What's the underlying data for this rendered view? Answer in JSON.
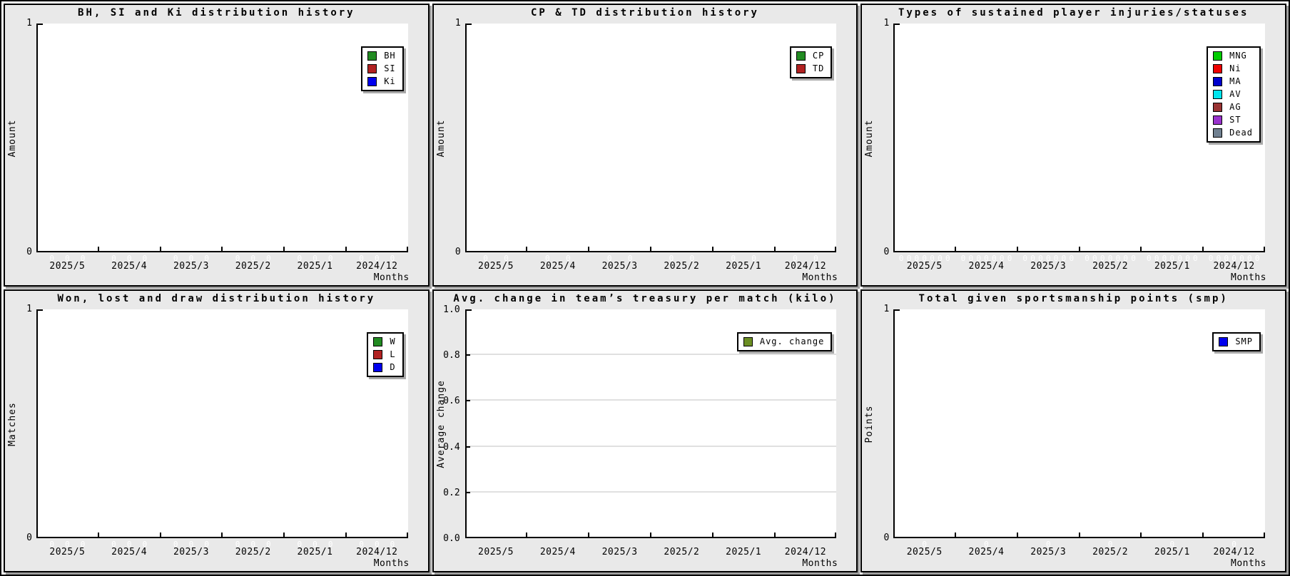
{
  "months_axis_label": "Months",
  "months": [
    "2025/5",
    "2025/4",
    "2025/3",
    "2025/2",
    "2025/1",
    "2024/12"
  ],
  "zero_label": "0",
  "panels": [
    {
      "id": "bh-si-ki",
      "title": "BH, SI and Ki distribution history",
      "ylabel": "Amount",
      "ymax": "1",
      "ymin": "0",
      "legend": [
        {
          "label": "BH",
          "color": "#228B22"
        },
        {
          "label": "SI",
          "color": "#B22222"
        },
        {
          "label": "Ki",
          "color": "#0000EE"
        }
      ],
      "show_zero_labels": true,
      "grid": false
    },
    {
      "id": "cp-td",
      "title": "CP & TD distribution history",
      "ylabel": "Amount",
      "ymax": "1",
      "ymin": "0",
      "legend": [
        {
          "label": "CP",
          "color": "#228B22"
        },
        {
          "label": "TD",
          "color": "#B22222"
        }
      ],
      "show_zero_labels": true,
      "grid": false
    },
    {
      "id": "injuries",
      "title": "Types of sustained player injuries/statuses",
      "ylabel": "Amount",
      "ymax": "1",
      "ymin": "0",
      "legend": [
        {
          "label": "MNG",
          "color": "#00CC00"
        },
        {
          "label": "Ni",
          "color": "#EE0000"
        },
        {
          "label": "MA",
          "color": "#0000CD"
        },
        {
          "label": "AV",
          "color": "#00E5EE"
        },
        {
          "label": "AG",
          "color": "#993333"
        },
        {
          "label": "ST",
          "color": "#9932CC"
        },
        {
          "label": "Dead",
          "color": "#708090"
        }
      ],
      "show_zero_labels": true,
      "grid": false
    },
    {
      "id": "won-lost-draw",
      "title": "Won, lost and draw distribution history",
      "ylabel": "Matches",
      "ymax": "1",
      "ymin": "0",
      "legend": [
        {
          "label": "W",
          "color": "#228B22"
        },
        {
          "label": "L",
          "color": "#B22222"
        },
        {
          "label": "D",
          "color": "#0000EE"
        }
      ],
      "show_zero_labels": true,
      "grid": false
    },
    {
      "id": "treasury",
      "title": "Avg. change in team’s treasury per match (kilo)",
      "ylabel": "Average change",
      "yticks": [
        "0.0",
        "0.2",
        "0.4",
        "0.6",
        "0.8",
        "1.0"
      ],
      "legend": [
        {
          "label": "Avg. change",
          "color": "#6B8E23"
        }
      ],
      "show_zero_labels": false,
      "grid": true
    },
    {
      "id": "smp",
      "title": "Total given sportsmanship points (smp)",
      "ylabel": "Points",
      "ymax": "1",
      "ymin": "0",
      "legend": [
        {
          "label": "SMP",
          "color": "#0000EE"
        }
      ],
      "show_zero_labels": true,
      "grid": false
    }
  ],
  "chart_data": [
    {
      "type": "bar",
      "title": "BH, SI and Ki distribution history",
      "xlabel": "Months",
      "ylabel": "Amount",
      "ylim": [
        0,
        1
      ],
      "categories": [
        "2025/5",
        "2025/4",
        "2025/3",
        "2025/2",
        "2025/1",
        "2024/12"
      ],
      "series": [
        {
          "name": "BH",
          "color": "#228B22",
          "values": [
            0,
            0,
            0,
            0,
            0,
            0
          ]
        },
        {
          "name": "SI",
          "color": "#B22222",
          "values": [
            0,
            0,
            0,
            0,
            0,
            0
          ]
        },
        {
          "name": "Ki",
          "color": "#0000EE",
          "values": [
            0,
            0,
            0,
            0,
            0,
            0
          ]
        }
      ],
      "legend_position": "top-right",
      "grid": false,
      "value_labels": "0"
    },
    {
      "type": "bar",
      "title": "CP & TD distribution history",
      "xlabel": "Months",
      "ylabel": "Amount",
      "ylim": [
        0,
        1
      ],
      "categories": [
        "2025/5",
        "2025/4",
        "2025/3",
        "2025/2",
        "2025/1",
        "2024/12"
      ],
      "series": [
        {
          "name": "CP",
          "color": "#228B22",
          "values": [
            0,
            0,
            0,
            0,
            0,
            0
          ]
        },
        {
          "name": "TD",
          "color": "#B22222",
          "values": [
            0,
            0,
            0,
            0,
            0,
            0
          ]
        }
      ],
      "legend_position": "top-right",
      "grid": false,
      "value_labels": "0"
    },
    {
      "type": "bar",
      "title": "Types of sustained player injuries/statuses",
      "xlabel": "Months",
      "ylabel": "Amount",
      "ylim": [
        0,
        1
      ],
      "categories": [
        "2025/5",
        "2025/4",
        "2025/3",
        "2025/2",
        "2025/1",
        "2024/12"
      ],
      "series": [
        {
          "name": "MNG",
          "color": "#00CC00",
          "values": [
            0,
            0,
            0,
            0,
            0,
            0
          ]
        },
        {
          "name": "Ni",
          "color": "#EE0000",
          "values": [
            0,
            0,
            0,
            0,
            0,
            0
          ]
        },
        {
          "name": "MA",
          "color": "#0000CD",
          "values": [
            0,
            0,
            0,
            0,
            0,
            0
          ]
        },
        {
          "name": "AV",
          "color": "#00E5EE",
          "values": [
            0,
            0,
            0,
            0,
            0,
            0
          ]
        },
        {
          "name": "AG",
          "color": "#993333",
          "values": [
            0,
            0,
            0,
            0,
            0,
            0
          ]
        },
        {
          "name": "ST",
          "color": "#9932CC",
          "values": [
            0,
            0,
            0,
            0,
            0,
            0
          ]
        },
        {
          "name": "Dead",
          "color": "#708090",
          "values": [
            0,
            0,
            0,
            0,
            0,
            0
          ]
        }
      ],
      "legend_position": "top-right",
      "grid": false,
      "value_labels": "0"
    },
    {
      "type": "bar",
      "title": "Won, lost and draw distribution history",
      "xlabel": "Months",
      "ylabel": "Matches",
      "ylim": [
        0,
        1
      ],
      "categories": [
        "2025/5",
        "2025/4",
        "2025/3",
        "2025/2",
        "2025/1",
        "2024/12"
      ],
      "series": [
        {
          "name": "W",
          "color": "#228B22",
          "values": [
            0,
            0,
            0,
            0,
            0,
            0
          ]
        },
        {
          "name": "L",
          "color": "#B22222",
          "values": [
            0,
            0,
            0,
            0,
            0,
            0
          ]
        },
        {
          "name": "D",
          "color": "#0000EE",
          "values": [
            0,
            0,
            0,
            0,
            0,
            0
          ]
        }
      ],
      "legend_position": "top-right",
      "grid": false,
      "value_labels": "0"
    },
    {
      "type": "line",
      "title": "Avg. change in team’s treasury per match (kilo)",
      "xlabel": "Months",
      "ylabel": "Average change",
      "ylim": [
        0.0,
        1.0
      ],
      "yticks": [
        0.0,
        0.2,
        0.4,
        0.6,
        0.8,
        1.0
      ],
      "categories": [
        "2025/5",
        "2025/4",
        "2025/3",
        "2025/2",
        "2025/1",
        "2024/12"
      ],
      "series": [
        {
          "name": "Avg. change",
          "color": "#6B8E23",
          "values": [
            null,
            null,
            null,
            null,
            null,
            null
          ]
        }
      ],
      "legend_position": "top-right",
      "grid": true
    },
    {
      "type": "bar",
      "title": "Total given sportsmanship points (smp)",
      "xlabel": "Months",
      "ylabel": "Points",
      "ylim": [
        0,
        1
      ],
      "categories": [
        "2025/5",
        "2025/4",
        "2025/3",
        "2025/2",
        "2025/1",
        "2024/12"
      ],
      "series": [
        {
          "name": "SMP",
          "color": "#0000EE",
          "values": [
            0,
            0,
            0,
            0,
            0,
            0
          ]
        }
      ],
      "legend_position": "top-right",
      "grid": false,
      "value_labels": "0"
    }
  ]
}
